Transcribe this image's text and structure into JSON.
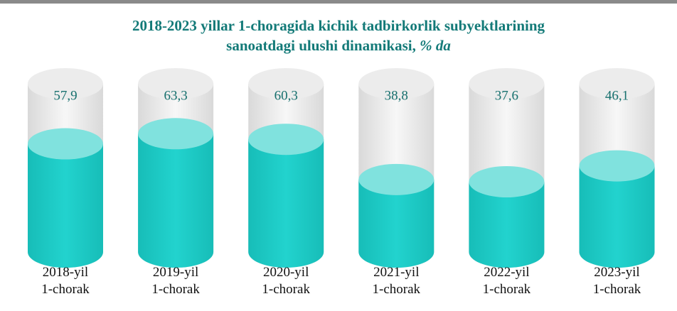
{
  "chart_data": {
    "type": "cylinder-bar",
    "title": "2018-2023 yillar 1-choragida kichik tadbirkorlik subyektlarining\nsanoatdagi ulushi dinamikasi,",
    "title_unit": "% da",
    "categories": [
      "2018-yil\n1-chorak",
      "2019-yil\n1-chorak",
      "2020-yil\n1-chorak",
      "2021-yil\n1-chorak",
      "2022-yil\n1-chorak",
      "2023-yil\n1-chorak"
    ],
    "values": [
      57.9,
      63.3,
      60.3,
      38.8,
      37.6,
      46.1
    ],
    "value_labels": [
      "57,9",
      "63,3",
      "60,3",
      "38,8",
      "37,6",
      "46,1"
    ],
    "color": "#1ecbc6",
    "ylim": [
      0,
      90
    ]
  }
}
